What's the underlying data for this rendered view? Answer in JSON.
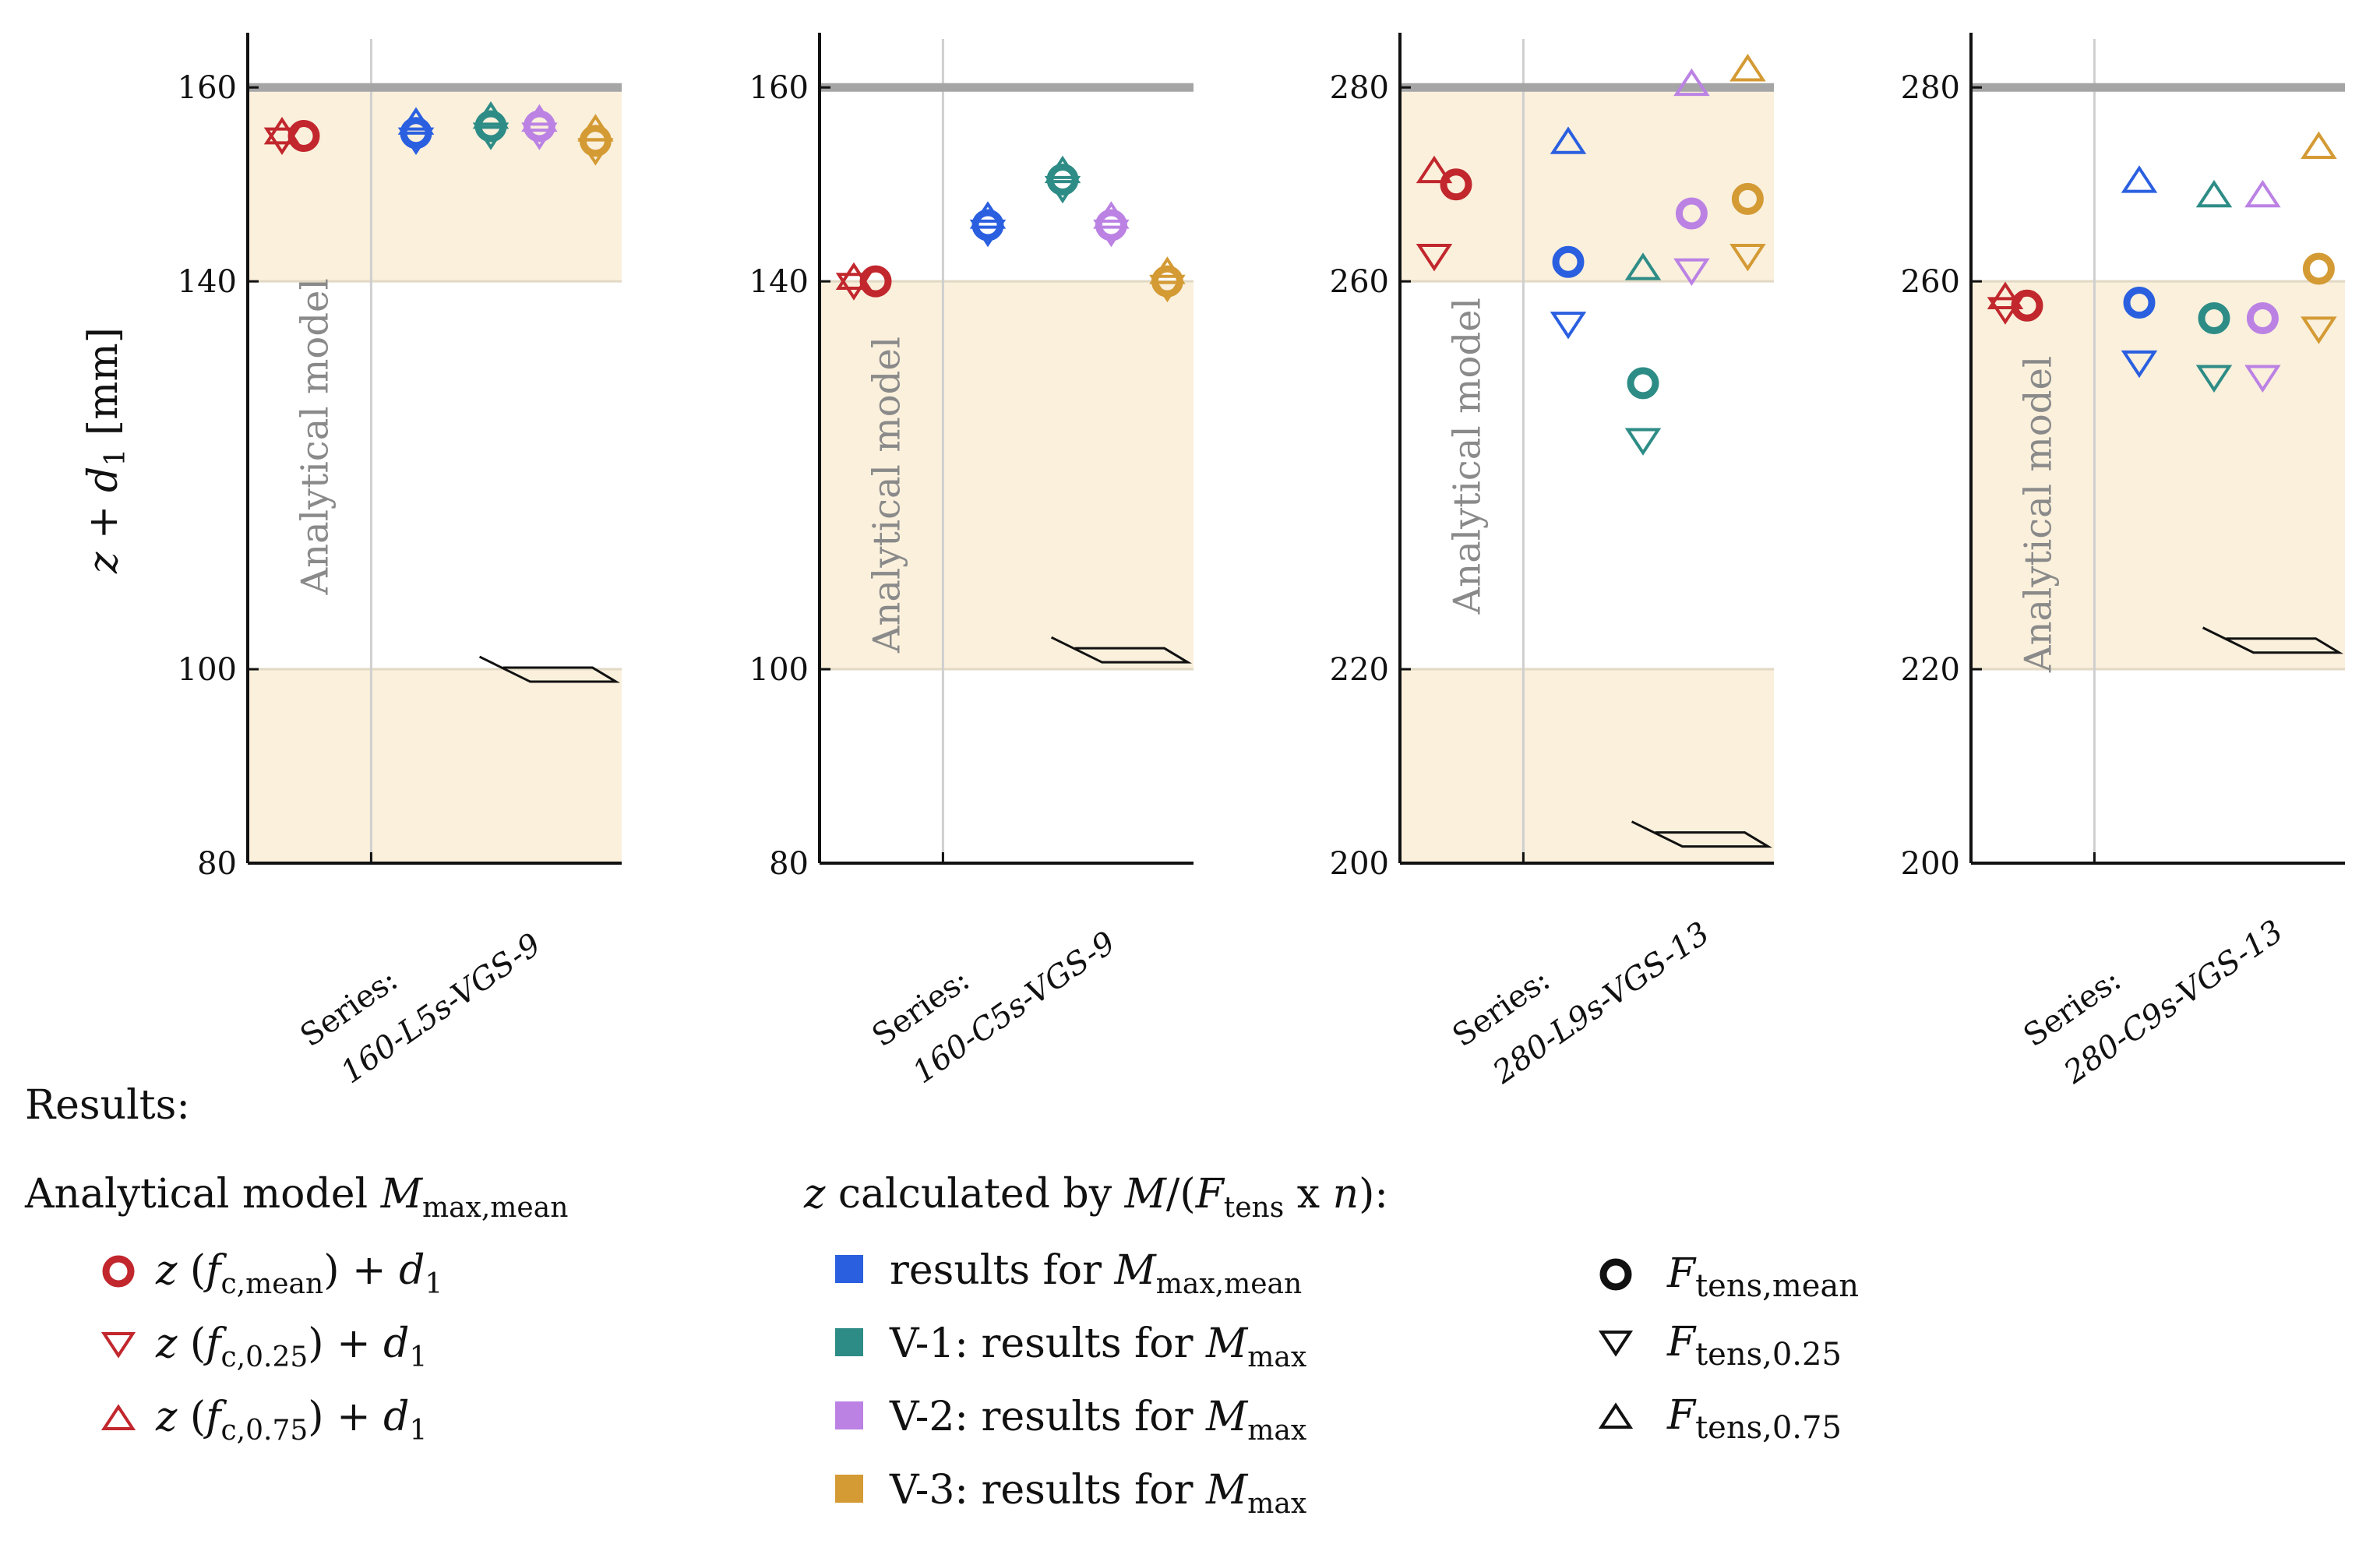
{
  "colors": {
    "model": "#c1272d",
    "mean": "#2a5fe0",
    "v1": "#2e8c86",
    "v2": "#bb82e4",
    "v3": "#d49a34",
    "band": "#faf0dc",
    "ref_line": "#a5a5a5",
    "grid": "#cfcfcf",
    "axis": "#111111"
  },
  "chart_data": {
    "type": "scatter",
    "ylabel": "z + d1 [mm]",
    "shared_x_slots": [
      "Analytical model",
      "results for Mmax,mean",
      "V-1: results for Mmax",
      "V-2: results for Mmax",
      "V-3: results for Mmax"
    ],
    "panels": [
      {
        "series_label": "Series:",
        "series_name": "160-L5s-VGS-9",
        "ylim": [
          80,
          165
        ],
        "yticks": [
          80,
          100,
          140,
          160
        ],
        "reference_line": 160,
        "bands": [
          [
            80,
            100
          ],
          [
            140,
            160
          ]
        ],
        "break_at": 100,
        "model_label": "Analytical model",
        "points": [
          {
            "group": "model",
            "mean": 155,
            "q25": 155,
            "q75": 155
          },
          {
            "group": "mean",
            "mean": 155.3,
            "q25": 155,
            "q75": 156
          },
          {
            "group": "v1",
            "mean": 156,
            "q25": 155.5,
            "q75": 156.6
          },
          {
            "group": "v2",
            "mean": 156,
            "q25": 155.5,
            "q75": 156.3
          },
          {
            "group": "v3",
            "mean": 154.5,
            "q25": 153.9,
            "q75": 155.3
          }
        ]
      },
      {
        "series_label": "Series:",
        "series_name": "160-C5s-VGS-9",
        "ylim": [
          80,
          165
        ],
        "yticks": [
          80,
          100,
          140,
          160
        ],
        "reference_line": 160,
        "bands": [
          [
            100,
            140
          ]
        ],
        "break_at": 102,
        "model_label": "Analytical model",
        "points": [
          {
            "group": "model",
            "mean": 140,
            "q25": 140,
            "q75": 140
          },
          {
            "group": "mean",
            "mean": 145.8,
            "q25": 145.5,
            "q75": 146.3
          },
          {
            "group": "v1",
            "mean": 150.5,
            "q25": 150,
            "q75": 151
          },
          {
            "group": "v2",
            "mean": 145.8,
            "q25": 145.5,
            "q75": 146.3
          },
          {
            "group": "v3",
            "mean": 140,
            "q25": 139.8,
            "q75": 140.6
          }
        ]
      },
      {
        "series_label": "Series:",
        "series_name": "280-L9s-VGS-13",
        "ylim": [
          200,
          285
        ],
        "yticks": [
          200,
          220,
          260,
          280
        ],
        "reference_line": 280,
        "bands": [
          [
            200,
            220
          ],
          [
            260,
            280
          ]
        ],
        "break_at": 203,
        "model_label": "Analytical model",
        "points": [
          {
            "group": "model",
            "mean": 270,
            "q25": 263,
            "q75": 271
          },
          {
            "group": "mean",
            "mean": 262,
            "q25": 256,
            "q75": 274
          },
          {
            "group": "v1",
            "mean": 249.5,
            "q25": 244,
            "q75": 261
          },
          {
            "group": "v2",
            "mean": 267,
            "q25": 261.5,
            "q75": 280
          },
          {
            "group": "v3",
            "mean": 268.5,
            "q25": 263,
            "q75": 281.5
          }
        ]
      },
      {
        "series_label": "Series:",
        "series_name": "280-C9s-VGS-13",
        "ylim": [
          200,
          285
        ],
        "yticks": [
          200,
          220,
          260,
          280
        ],
        "reference_line": 280,
        "bands": [
          [
            220,
            260
          ]
        ],
        "break_at": 223,
        "model_label": "Analytical model",
        "points": [
          {
            "group": "model",
            "mean": 257.5,
            "q25": 257.5,
            "q75": 258
          },
          {
            "group": "mean",
            "mean": 257.8,
            "q25": 252,
            "q75": 270
          },
          {
            "group": "v1",
            "mean": 256.2,
            "q25": 250.5,
            "q75": 268.5
          },
          {
            "group": "v2",
            "mean": 256.2,
            "q25": 250.5,
            "q75": 268.5
          },
          {
            "group": "v3",
            "mean": 261.3,
            "q25": 255.5,
            "q75": 273.5
          }
        ]
      }
    ]
  },
  "legend": {
    "results_title": "Results:",
    "model_heading": "Analytical model M",
    "model_heading_sub": "max,mean",
    "model_entries": [
      {
        "symbol": "circle",
        "main": "z (f",
        "sub": "c,mean",
        "tail": ") + d",
        "sub2": "1"
      },
      {
        "symbol": "triangle-down",
        "main": "z (f",
        "sub": "c,0.25",
        "tail": ") + d",
        "sub2": "1"
      },
      {
        "symbol": "triangle-up",
        "main": "z (f",
        "sub": "c,0.75",
        "tail": ") + d",
        "sub2": "1"
      }
    ],
    "calc_heading": "z calculated by M/(F",
    "calc_heading_sub": "tens",
    "calc_heading_tail": " x n):",
    "calc_entries": [
      {
        "color_key": "mean",
        "text": "results for M",
        "sub": "max,mean"
      },
      {
        "color_key": "v1",
        "text": "V-1: results for M",
        "sub": "max"
      },
      {
        "color_key": "v2",
        "text": "V-2: results for M",
        "sub": "max"
      },
      {
        "color_key": "v3",
        "text": "V-3: results for M",
        "sub": "max"
      }
    ],
    "force_entries": [
      {
        "symbol": "circle",
        "text": "F",
        "sub": "tens,mean"
      },
      {
        "symbol": "triangle-down",
        "text": "F",
        "sub": "tens,0.25"
      },
      {
        "symbol": "triangle-up",
        "text": "F",
        "sub": "tens,0.75"
      }
    ]
  }
}
